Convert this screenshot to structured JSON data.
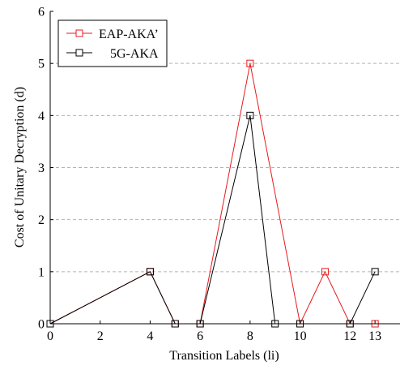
{
  "chart_data": {
    "type": "line",
    "xlabel": "Transition Labels (li)",
    "ylabel": "Cost of Unitary Decryption (d)",
    "xlim": [
      0,
      14
    ],
    "ylim": [
      0,
      6
    ],
    "x_ticks": [
      0,
      2,
      4,
      6,
      8,
      10,
      12,
      13
    ],
    "y_ticks": [
      0,
      1,
      2,
      3,
      4,
      5,
      6
    ],
    "grid": "horizontal dashed",
    "legend_position": "top-left",
    "series": [
      {
        "name": "EAP-AKA’",
        "color": "#e8191c",
        "marker": "square",
        "x": [
          0,
          4,
          5,
          6,
          8,
          10,
          11,
          12,
          13
        ],
        "y": [
          0,
          1,
          0,
          0,
          5,
          0,
          1,
          0,
          0
        ]
      },
      {
        "name": "5G-AKA",
        "color": "#000000",
        "marker": "square",
        "x": [
          0,
          4,
          5,
          6,
          8,
          9,
          10,
          12,
          13
        ],
        "y": [
          0,
          1,
          0,
          0,
          4,
          0,
          0,
          0,
          1
        ]
      }
    ]
  }
}
